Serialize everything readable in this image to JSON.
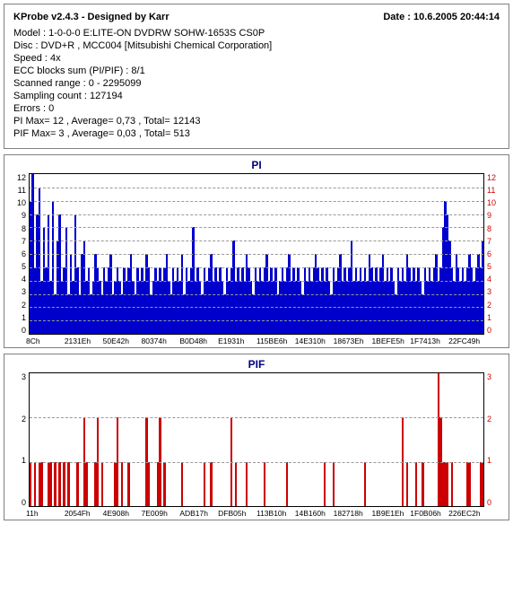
{
  "header": {
    "product": "KProbe v2.4.3 - Designed by Karr",
    "date_label": "Date : 10.6.2005 20:44:14"
  },
  "info": {
    "model": "Model : 1-0-0-0 E:LITE-ON DVDRW SOHW-1653S CS0P",
    "disc": "Disc : DVD+R , MCC004 [Mitsubishi Chemical Corporation]",
    "speed": "Speed : 4x",
    "ecc": "ECC blocks sum (PI/PIF) : 8/1",
    "scanned": "Scanned range : 0 - 2295099",
    "sampling": "Sampling count : 127194",
    "errors": "Errors : 0",
    "pimax": "PI Max= 12 , Average= 0,73 , Total= 12143",
    "pifmax": "PIF Max= 3 , Average= 0,03 , Total= 513"
  },
  "pi_chart": {
    "title": "PI",
    "color": "#0000cc",
    "ymax": 12,
    "yticks": [
      "12",
      "11",
      "10",
      "9",
      "8",
      "7",
      "6",
      "5",
      "4",
      "3",
      "2",
      "1",
      "0"
    ],
    "xticks": [
      "8Ch",
      "2131Eh",
      "50E42h",
      "80374h",
      "B0D48h",
      "E1931h",
      "115BE6h",
      "14E310h",
      "18673Eh",
      "1BEFE5h",
      "1F7413h",
      "22FC49h"
    ],
    "gridl": [
      8.33,
      16.67,
      25,
      33.33,
      41.67,
      50,
      58.33,
      66.67,
      75,
      83.33,
      91.67
    ],
    "data": [
      10,
      12,
      5,
      9,
      11,
      4,
      8,
      5,
      9,
      4,
      10,
      3,
      7,
      9,
      4,
      5,
      8,
      3,
      6,
      4,
      9,
      5,
      3,
      6,
      7,
      4,
      5,
      3,
      4,
      6,
      5,
      4,
      3,
      5,
      4,
      5,
      6,
      3,
      4,
      5,
      4,
      3,
      5,
      4,
      5,
      6,
      4,
      3,
      5,
      4,
      5,
      4,
      6,
      5,
      3,
      4,
      5,
      4,
      5,
      4,
      5,
      6,
      4,
      3,
      5,
      4,
      5,
      4,
      6,
      3,
      5,
      4,
      5,
      8,
      4,
      5,
      4,
      3,
      5,
      4,
      5,
      6,
      4,
      5,
      4,
      5,
      4,
      3,
      5,
      4,
      5,
      7,
      4,
      5,
      4,
      5,
      4,
      6,
      5,
      4,
      3,
      5,
      4,
      5,
      4,
      5,
      6,
      4,
      5,
      4,
      5,
      3,
      4,
      5,
      4,
      5,
      6,
      4,
      5,
      4,
      5,
      4,
      3,
      5,
      4,
      5,
      4,
      5,
      6,
      5,
      4,
      5,
      4,
      5,
      4,
      3,
      5,
      4,
      5,
      6,
      4,
      5,
      4,
      5,
      7,
      4,
      5,
      4,
      5,
      4,
      5,
      4,
      6,
      5,
      4,
      5,
      4,
      5,
      6,
      4,
      5,
      4,
      5,
      4,
      3,
      5,
      4,
      5,
      4,
      6,
      5,
      4,
      5,
      4,
      5,
      4,
      3,
      5,
      4,
      5,
      4,
      5,
      6,
      4,
      5,
      8,
      10,
      9,
      7,
      5,
      4,
      6,
      5,
      4,
      5,
      4,
      5,
      6,
      5,
      4,
      5,
      6,
      5,
      7
    ]
  },
  "pif_chart": {
    "title": "PIF",
    "color": "#cc0000",
    "ymax": 3,
    "yticks": [
      "3",
      "2",
      "1",
      "0"
    ],
    "xticks": [
      "11h",
      "2054Fh",
      "4E908h",
      "7E009h",
      "ADB17h",
      "DFB05h",
      "113B10h",
      "14B160h",
      "182718h",
      "1B9E1Eh",
      "1F0B06h",
      "226EC2h"
    ],
    "gridl": [
      33.33,
      66.67
    ],
    "data": [
      1,
      0,
      1,
      0,
      1,
      1,
      0,
      0,
      1,
      1,
      0,
      1,
      0,
      1,
      0,
      1,
      0,
      1,
      0,
      0,
      0,
      1,
      0,
      0,
      2,
      1,
      0,
      0,
      0,
      1,
      2,
      0,
      1,
      0,
      0,
      0,
      0,
      0,
      1,
      2,
      0,
      1,
      0,
      0,
      1,
      0,
      0,
      0,
      0,
      0,
      0,
      0,
      2,
      1,
      0,
      0,
      0,
      1,
      2,
      0,
      1,
      0,
      0,
      0,
      0,
      0,
      0,
      0,
      1,
      0,
      0,
      0,
      0,
      0,
      0,
      0,
      0,
      0,
      1,
      0,
      0,
      1,
      0,
      0,
      0,
      0,
      0,
      0,
      0,
      0,
      2,
      0,
      1,
      0,
      0,
      0,
      0,
      1,
      0,
      0,
      0,
      0,
      0,
      0,
      0,
      1,
      0,
      0,
      0,
      0,
      0,
      0,
      0,
      0,
      0,
      1,
      0,
      0,
      0,
      0,
      0,
      0,
      0,
      0,
      0,
      0,
      0,
      0,
      0,
      0,
      0,
      0,
      1,
      0,
      0,
      0,
      1,
      0,
      0,
      0,
      0,
      0,
      0,
      0,
      0,
      0,
      0,
      0,
      0,
      0,
      1,
      0,
      0,
      0,
      0,
      0,
      0,
      0,
      0,
      0,
      0,
      0,
      0,
      0,
      0,
      0,
      0,
      2,
      0,
      1,
      0,
      0,
      0,
      1,
      0,
      0,
      1,
      0,
      0,
      0,
      0,
      0,
      0,
      3,
      2,
      1,
      1,
      1,
      0,
      1,
      0,
      0,
      0,
      0,
      0,
      0,
      1,
      1,
      0,
      0,
      0,
      0,
      1,
      1
    ]
  }
}
